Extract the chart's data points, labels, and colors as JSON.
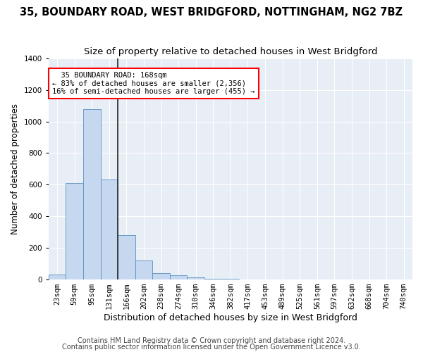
{
  "title": "35, BOUNDARY ROAD, WEST BRIDGFORD, NOTTINGHAM, NG2 7BZ",
  "subtitle": "Size of property relative to detached houses in West Bridgford",
  "xlabel": "Distribution of detached houses by size in West Bridgford",
  "ylabel": "Number of detached properties",
  "categories": [
    "23sqm",
    "59sqm",
    "95sqm",
    "131sqm",
    "166sqm",
    "202sqm",
    "238sqm",
    "274sqm",
    "310sqm",
    "346sqm",
    "382sqm",
    "417sqm",
    "453sqm",
    "489sqm",
    "525sqm",
    "561sqm",
    "597sqm",
    "632sqm",
    "668sqm",
    "704sqm",
    "740sqm"
  ],
  "values": [
    30,
    610,
    1080,
    630,
    280,
    120,
    40,
    25,
    10,
    2,
    1,
    0,
    0,
    0,
    0,
    0,
    0,
    0,
    0,
    0,
    0
  ],
  "bar_color": "#c5d8f0",
  "bar_edge_color": "#5a8fc0",
  "vline_index": 4,
  "vline_color": "#222222",
  "annotation_text": "  35 BOUNDARY ROAD: 168sqm\n← 83% of detached houses are smaller (2,356)\n16% of semi-detached houses are larger (455) →",
  "annotation_box_facecolor": "white",
  "annotation_box_edgecolor": "red",
  "ylim": [
    0,
    1400
  ],
  "yticks": [
    0,
    200,
    400,
    600,
    800,
    1000,
    1200,
    1400
  ],
  "footer1": "Contains HM Land Registry data © Crown copyright and database right 2024.",
  "footer2": "Contains public sector information licensed under the Open Government Licence v3.0.",
  "plot_bg_color": "#e8eef5",
  "title_fontsize": 10.5,
  "subtitle_fontsize": 9.5,
  "xlabel_fontsize": 9,
  "ylabel_fontsize": 8.5,
  "tick_fontsize": 7.5,
  "annot_fontsize": 7.5,
  "footer_fontsize": 7
}
